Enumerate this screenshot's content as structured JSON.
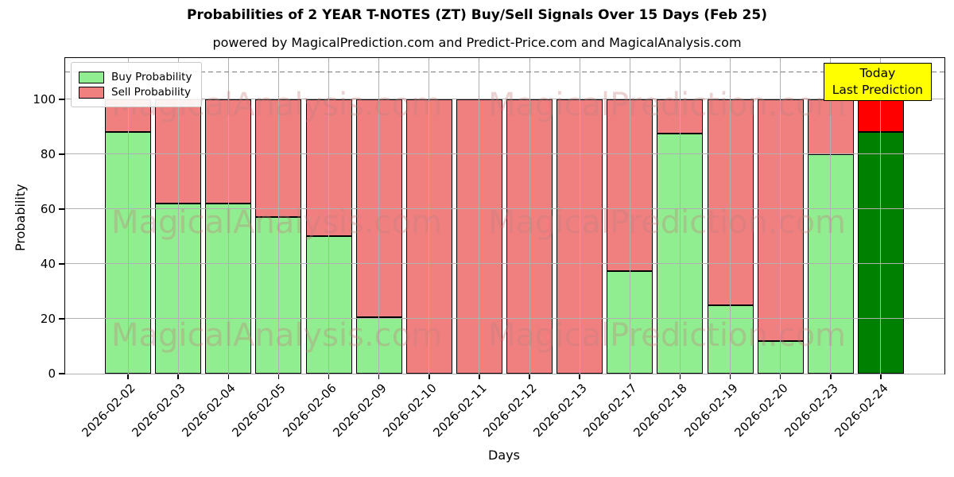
{
  "title": "Probabilities of 2 YEAR T-NOTES (ZT) Buy/Sell Signals Over 15 Days (Feb 25)",
  "subtitle": "powered by MagicalPrediction.com and Predict-Price.com and MagicalAnalysis.com",
  "annotation": {
    "line1": "Today",
    "line2": "Last Prediction",
    "bg": "#ffff00"
  },
  "watermarks": {
    "left_text": "MagicalAnalysis.com",
    "right_text": "MagicalPrediction.com"
  },
  "chart_data": {
    "type": "bar",
    "stacked": true,
    "title": "Probabilities of 2 YEAR T-NOTES (ZT) Buy/Sell Signals Over 15 Days (Feb 25)",
    "xlabel": "Days",
    "ylabel": "Probability",
    "ylim": [
      0,
      115
    ],
    "yticks": [
      0,
      20,
      40,
      60,
      80,
      100
    ],
    "threshold_line": 110,
    "grid": true,
    "legend_position": "upper left",
    "categories": [
      "2026-02-02",
      "2026-02-03",
      "2026-02-04",
      "2026-02-05",
      "2026-02-06",
      "2026-02-09",
      "2026-02-10",
      "2026-02-11",
      "2026-02-12",
      "2026-02-13",
      "2026-02-17",
      "2026-02-18",
      "2026-02-19",
      "2026-02-20",
      "2026-02-23",
      "2026-02-24"
    ],
    "series": [
      {
        "name": "Buy Probability",
        "color": "#90ee90",
        "values": [
          88,
          62,
          62,
          57,
          50,
          20.5,
          0,
          0,
          0,
          0,
          37.5,
          87.5,
          25,
          12,
          80,
          88
        ]
      },
      {
        "name": "Sell Probability",
        "color": "#f08080",
        "values": [
          12,
          38,
          38,
          43,
          50,
          79.5,
          100,
          100,
          100,
          100,
          62.5,
          12.5,
          75,
          88,
          20,
          12
        ]
      }
    ],
    "last_bar_colors": {
      "buy": "#008000",
      "sell": "#ff0000"
    },
    "grid_color": "#b0b0b0"
  }
}
